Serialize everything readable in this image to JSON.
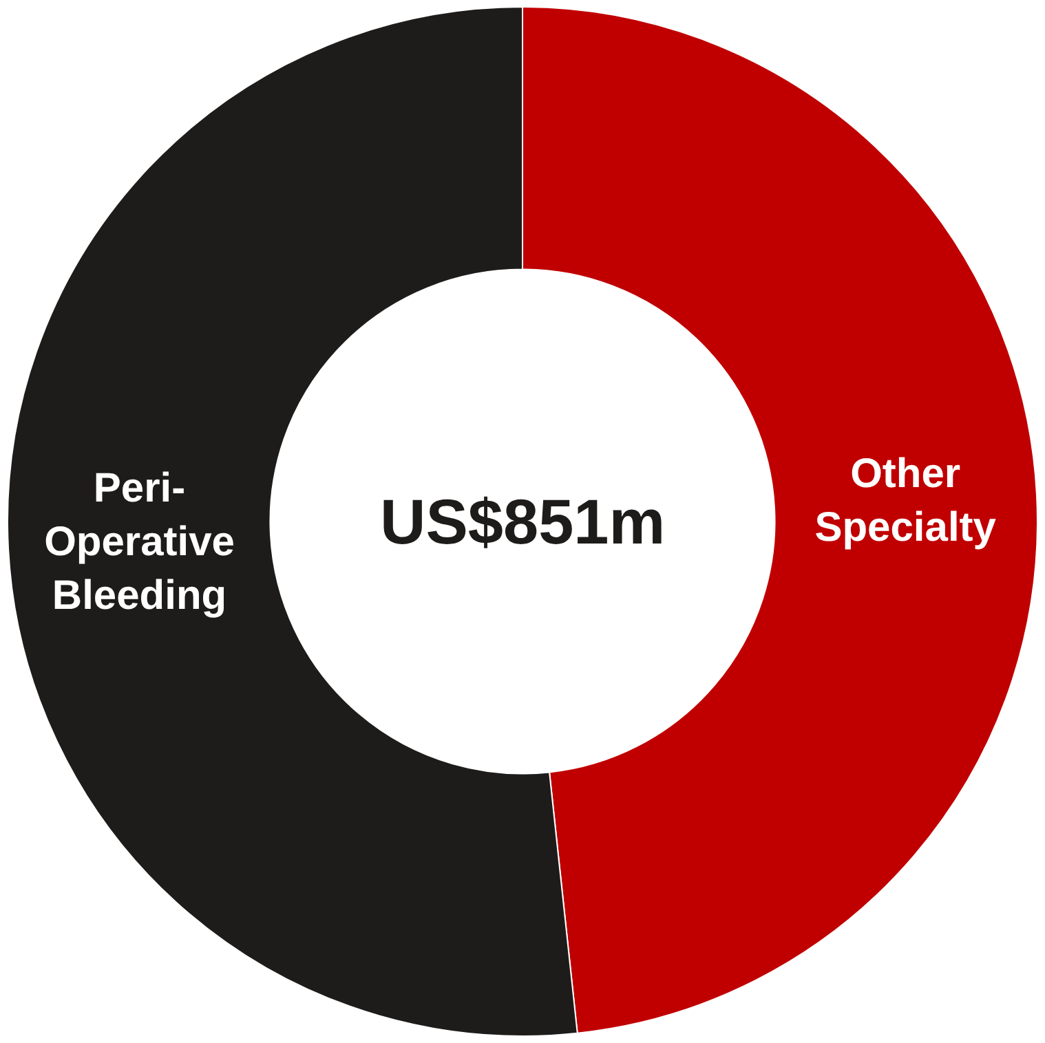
{
  "chart_data": {
    "type": "donut",
    "categories": [
      "Other Specialty",
      "Peri-Operative Bleeding"
    ],
    "values": [
      48.3,
      51.7
    ],
    "colors": [
      "#c00000",
      "#1e1c1a"
    ],
    "annotations": [
      "US$851m"
    ],
    "legend": false
  }
}
